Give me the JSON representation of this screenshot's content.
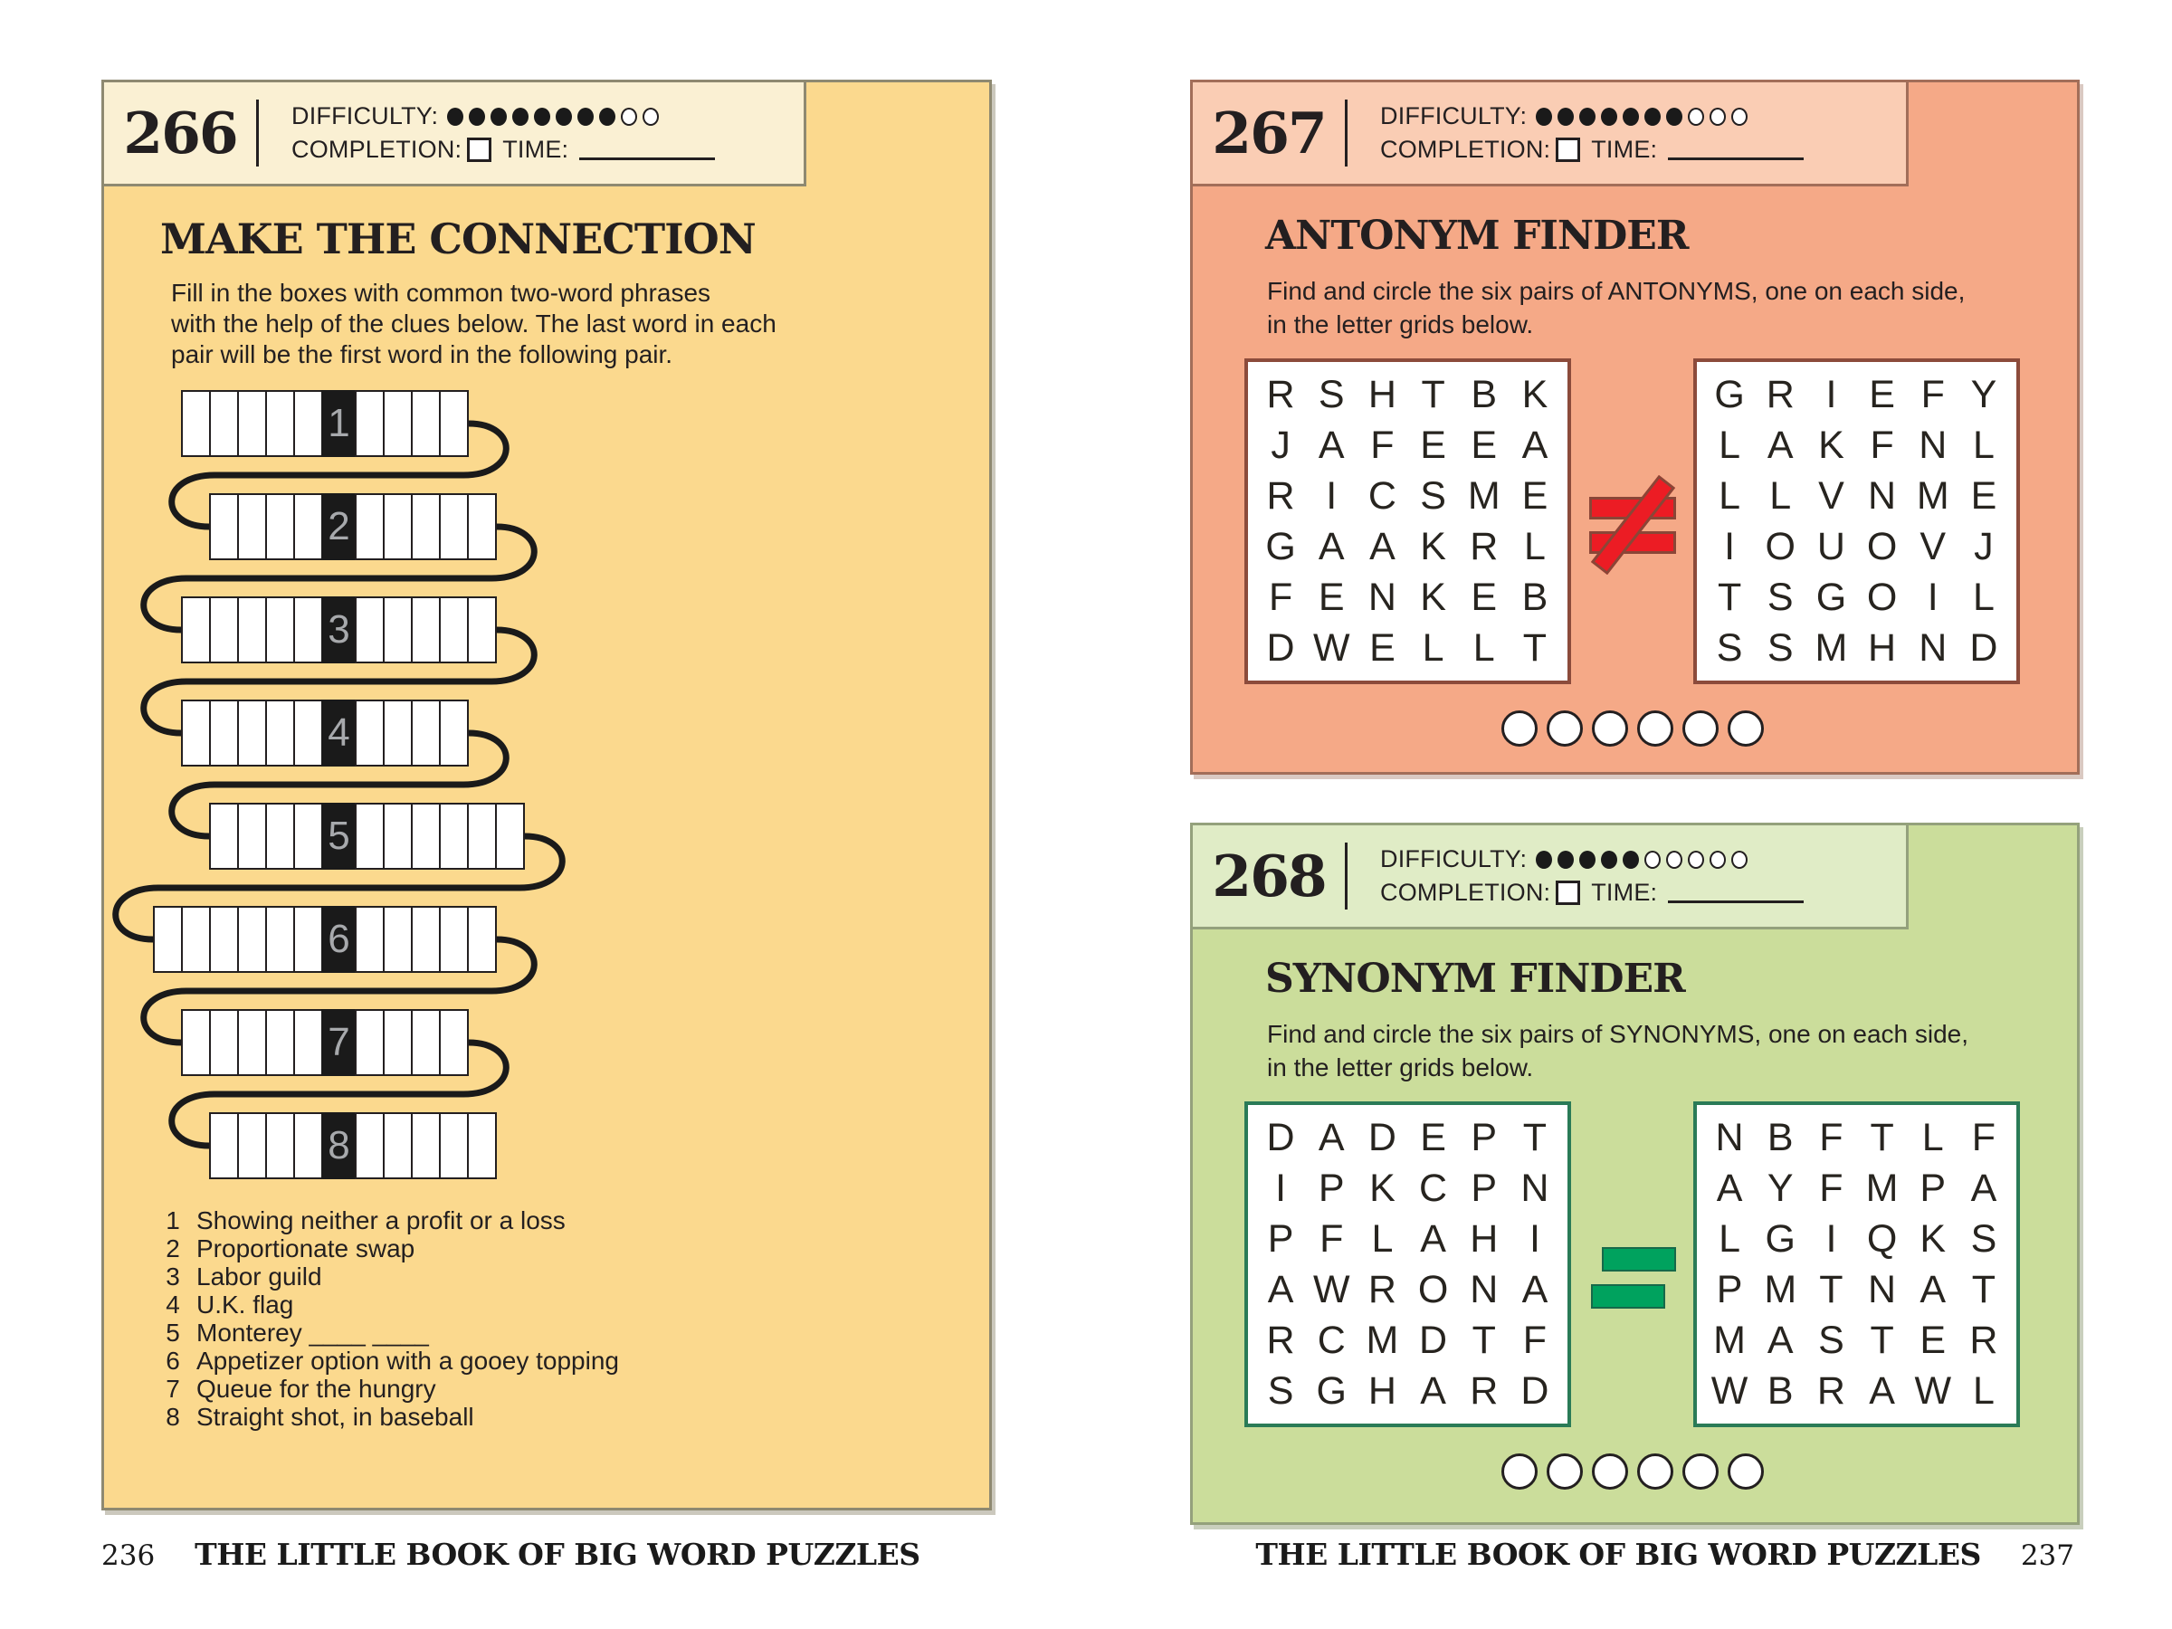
{
  "labels": {
    "difficulty": "DIFFICULTY:",
    "completion": "COMPLETION:",
    "time": "TIME:"
  },
  "puzzle266": {
    "number": "266",
    "title": "MAKE THE CONNECTION",
    "difficulty": {
      "filled": 8,
      "total": 10
    },
    "instructions": [
      "Fill in the boxes with common two-word phrases",
      "with the help of the clues below. The last word in each",
      "pair will be the first word in the following pair."
    ],
    "rows": [
      {
        "num": "1",
        "before": 5,
        "after": 4
      },
      {
        "num": "2",
        "before": 4,
        "after": 5
      },
      {
        "num": "3",
        "before": 5,
        "after": 5
      },
      {
        "num": "4",
        "before": 5,
        "after": 4
      },
      {
        "num": "5",
        "before": 4,
        "after": 6
      },
      {
        "num": "6",
        "before": 6,
        "after": 5
      },
      {
        "num": "7",
        "before": 5,
        "after": 4
      },
      {
        "num": "8",
        "before": 4,
        "after": 5
      }
    ],
    "clues": [
      {
        "num": "1",
        "text": "Showing neither a profit or a loss"
      },
      {
        "num": "2",
        "text": "Proportionate swap"
      },
      {
        "num": "3",
        "text": "Labor guild"
      },
      {
        "num": "4",
        "text": "U.K. flag"
      },
      {
        "num": "5",
        "text": "Monterey ____ ____"
      },
      {
        "num": "6",
        "text": "Appetizer option with a gooey topping"
      },
      {
        "num": "7",
        "text": "Queue for the hungry"
      },
      {
        "num": "8",
        "text": "Straight shot, in baseball"
      }
    ]
  },
  "puzzle267": {
    "number": "267",
    "title": "ANTONYM FINDER",
    "difficulty": {
      "filled": 7,
      "total": 10
    },
    "instructions": [
      "Find and circle the six pairs of ANTONYMS, one on each side,",
      "in the letter grids below."
    ],
    "relation_icon": "not-equal-icon",
    "grids": {
      "left": [
        "RSHTBK",
        "JAFEEA",
        "RICSME",
        "GAAKRL",
        "FENKEB",
        "DWELLT"
      ],
      "right": [
        "GRIEFY",
        "LAKFNL",
        "LLVNME",
        "IOUOVJ",
        "TSGOIL",
        "SSMHND"
      ]
    },
    "answer_circles": 6
  },
  "puzzle268": {
    "number": "268",
    "title": "SYNONYM FINDER",
    "difficulty": {
      "filled": 5,
      "total": 10
    },
    "instructions": [
      "Find and circle the six pairs of SYNONYMS, one on each side,",
      "in the letter grids below."
    ],
    "relation_icon": "equals-icon",
    "grids": {
      "left": [
        "DADEPT",
        "IPKCPN",
        "PFLAHI",
        "AWRONA",
        "RCMDTF",
        "SGHARD"
      ],
      "right": [
        "NBFTLF",
        "AYFMPA",
        "LGIQKS",
        "PMTNAT",
        "MASTER",
        "WBRAWL"
      ]
    },
    "answer_circles": 6
  },
  "footer": {
    "left_page_number": "236",
    "right_page_number": "237",
    "book_title": "THE LITTLE BOOK OF BIG WORD PUZZLES"
  },
  "colors": {
    "yellow_panel": "#FBD98E",
    "yellow_header": "#FAF0D3",
    "yellow_border": "#8E8971",
    "salmon_panel": "#F5A987",
    "salmon_header": "#FACDB4",
    "salmon_border": "#A26E59",
    "grid_border_267": "#8C4B3B",
    "not_equal_red": "#EC1C24",
    "green_panel": "#CBDD9B",
    "green_header": "#E0ECC6",
    "green_border": "#94A17C",
    "grid_border_268": "#2A7B57",
    "equals_green": "#00A25E",
    "ink": "#231F20",
    "cell_number_gray": "#A7A9AC"
  }
}
